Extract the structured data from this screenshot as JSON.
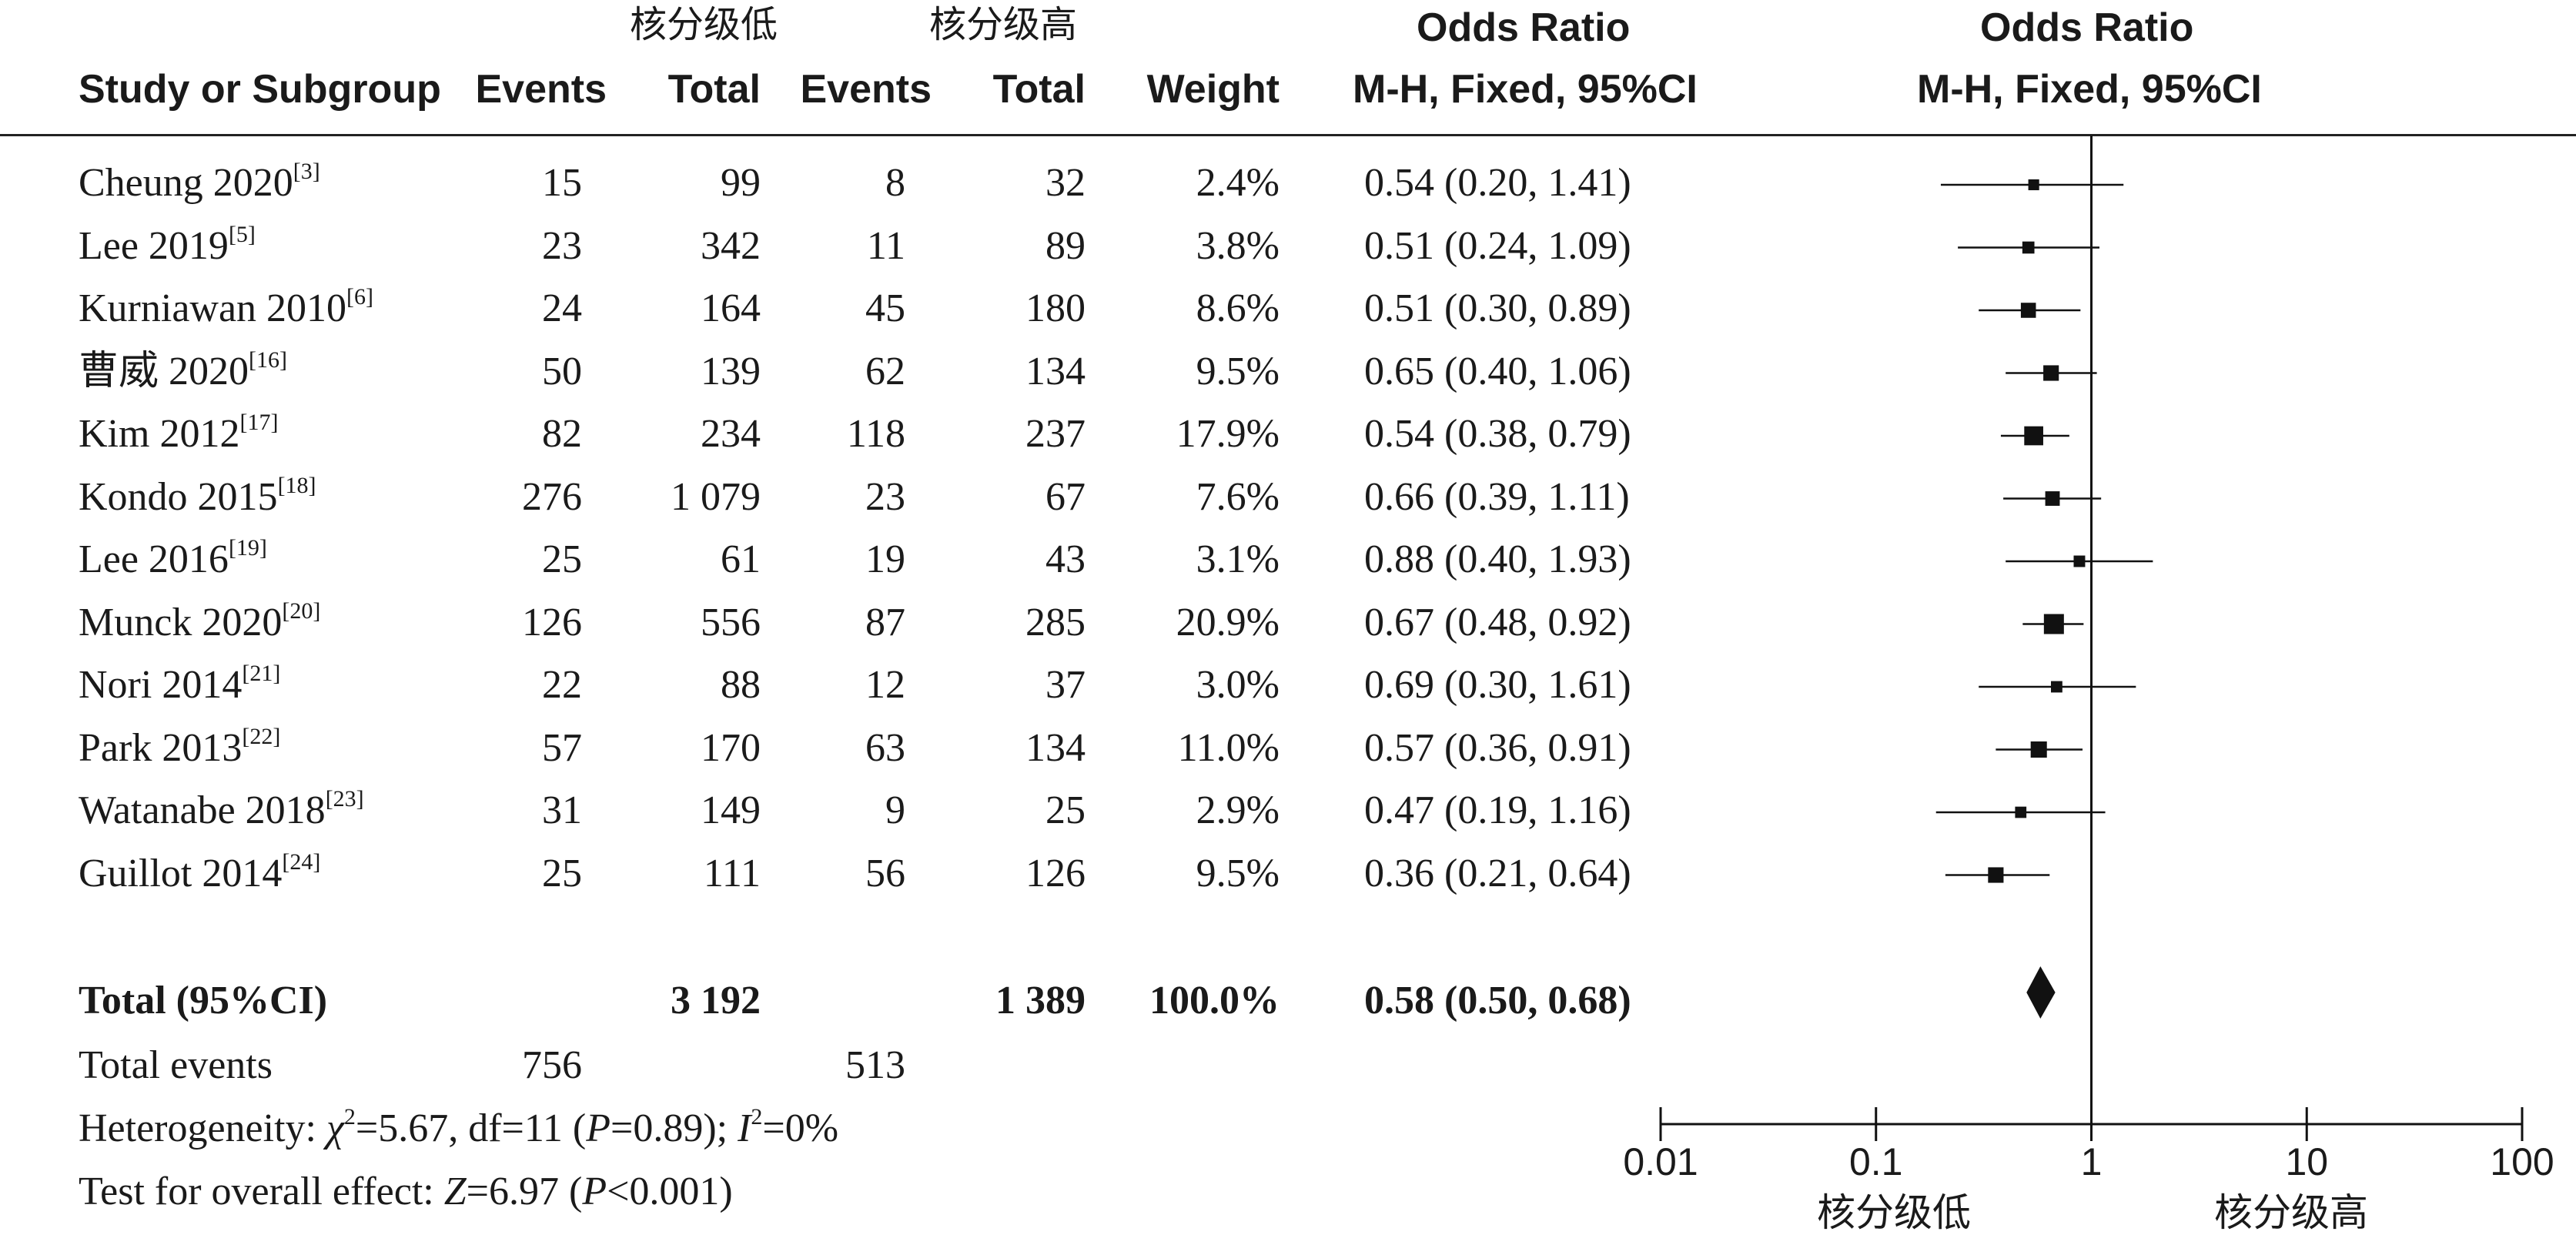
{
  "headers": {
    "study": "Study or Subgroup",
    "group_low": "核分级低",
    "group_high": "核分级高",
    "events_low": "Events",
    "total_low": "Total",
    "events_high": "Events",
    "total_high": "Total",
    "weight": "Weight",
    "or_title": "Odds Ratio",
    "or_method": "M-H, Fixed, 95%CI",
    "plot_title": "Odds Ratio",
    "plot_method": "M-H, Fixed, 95%CI"
  },
  "studies": [
    {
      "name": "Cheung 2020",
      "ref": "[3]",
      "e1": "15",
      "t1": "99",
      "e2": "8",
      "t2": "32",
      "weight": "2.4%",
      "ci": "0.54 (0.20, 1.41)"
    },
    {
      "name": "Lee 2019",
      "ref": "[5]",
      "e1": "23",
      "t1": "342",
      "e2": "11",
      "t2": "89",
      "weight": "3.8%",
      "ci": "0.51 (0.24, 1.09)"
    },
    {
      "name": "Kurniawan 2010",
      "ref": "[6]",
      "e1": "24",
      "t1": "164",
      "e2": "45",
      "t2": "180",
      "weight": "8.6%",
      "ci": "0.51 (0.30, 0.89)"
    },
    {
      "name": "曹威 2020",
      "ref": "[16]",
      "e1": "50",
      "t1": "139",
      "e2": "62",
      "t2": "134",
      "weight": "9.5%",
      "ci": "0.65 (0.40, 1.06)"
    },
    {
      "name": "Kim 2012",
      "ref": "[17]",
      "e1": "82",
      "t1": "234",
      "e2": "118",
      "t2": "237",
      "weight": "17.9%",
      "ci": "0.54 (0.38, 0.79)"
    },
    {
      "name": "Kondo 2015",
      "ref": "[18]",
      "e1": "276",
      "t1": "1 079",
      "e2": "23",
      "t2": "67",
      "weight": "7.6%",
      "ci": "0.66 (0.39, 1.11)"
    },
    {
      "name": "Lee 2016",
      "ref": "[19]",
      "e1": "25",
      "t1": "61",
      "e2": "19",
      "t2": "43",
      "weight": "3.1%",
      "ci": "0.88 (0.40, 1.93)"
    },
    {
      "name": "Munck 2020",
      "ref": "[20]",
      "e1": "126",
      "t1": "556",
      "e2": "87",
      "t2": "285",
      "weight": "20.9%",
      "ci": "0.67 (0.48, 0.92)"
    },
    {
      "name": "Nori 2014",
      "ref": "[21]",
      "e1": "22",
      "t1": "88",
      "e2": "12",
      "t2": "37",
      "weight": "3.0%",
      "ci": "0.69 (0.30, 1.61)"
    },
    {
      "name": "Park 2013",
      "ref": "[22]",
      "e1": "57",
      "t1": "170",
      "e2": "63",
      "t2": "134",
      "weight": "11.0%",
      "ci": "0.57 (0.36, 0.91)"
    },
    {
      "name": "Watanabe 2018",
      "ref": "[23]",
      "e1": "31",
      "t1": "149",
      "e2": "9",
      "t2": "25",
      "weight": "2.9%",
      "ci": "0.47 (0.19, 1.16)"
    },
    {
      "name": "Guillot 2014",
      "ref": "[24]",
      "e1": "25",
      "t1": "111",
      "e2": "56",
      "t2": "126",
      "weight": "9.5%",
      "ci": "0.36 (0.21, 0.64)"
    }
  ],
  "total": {
    "label": "Total (95%CI)",
    "t1": "3 192",
    "t2": "1 389",
    "weight": "100.0%",
    "ci": "0.58 (0.50, 0.68)"
  },
  "total_events": {
    "label": "Total events",
    "e1": "756",
    "e2": "513"
  },
  "footer": {
    "het_prefix": "Heterogeneity: ",
    "het_chi": "χ",
    "het_chi_sup": "2",
    "het_mid": "=5.67, df=11 (",
    "het_p": "P",
    "het_pval": "=0.89); ",
    "het_i": "I",
    "het_i_sup": "2",
    "het_ival": "=0%",
    "test_prefix": "Test for overall effect: ",
    "test_z": "Z",
    "test_zval": "=6.97 (",
    "test_p": "P",
    "test_pval": "<0.001)"
  },
  "axis": {
    "ticks": [
      "0.01",
      "0.1",
      "1",
      "10",
      "100"
    ],
    "favours_left": "核分级低",
    "favours_right": "核分级高"
  },
  "chart_data": {
    "type": "forest",
    "scale": "log",
    "xlim": [
      0.01,
      100
    ],
    "reference_line": 1,
    "series": [
      {
        "study": "Cheung 2020",
        "or": 0.54,
        "lower": 0.2,
        "upper": 1.41,
        "weight": 2.4
      },
      {
        "study": "Lee 2019",
        "or": 0.51,
        "lower": 0.24,
        "upper": 1.09,
        "weight": 3.8
      },
      {
        "study": "Kurniawan 2010",
        "or": 0.51,
        "lower": 0.3,
        "upper": 0.89,
        "weight": 8.6
      },
      {
        "study": "曹威 2020",
        "or": 0.65,
        "lower": 0.4,
        "upper": 1.06,
        "weight": 9.5
      },
      {
        "study": "Kim 2012",
        "or": 0.54,
        "lower": 0.38,
        "upper": 0.79,
        "weight": 17.9
      },
      {
        "study": "Kondo 2015",
        "or": 0.66,
        "lower": 0.39,
        "upper": 1.11,
        "weight": 7.6
      },
      {
        "study": "Lee 2016",
        "or": 0.88,
        "lower": 0.4,
        "upper": 1.93,
        "weight": 3.1
      },
      {
        "study": "Munck 2020",
        "or": 0.67,
        "lower": 0.48,
        "upper": 0.92,
        "weight": 20.9
      },
      {
        "study": "Nori 2014",
        "or": 0.69,
        "lower": 0.3,
        "upper": 1.61,
        "weight": 3.0
      },
      {
        "study": "Park 2013",
        "or": 0.57,
        "lower": 0.36,
        "upper": 0.91,
        "weight": 11.0
      },
      {
        "study": "Watanabe 2018",
        "or": 0.47,
        "lower": 0.19,
        "upper": 1.16,
        "weight": 2.9
      },
      {
        "study": "Guillot 2014",
        "or": 0.36,
        "lower": 0.21,
        "upper": 0.64,
        "weight": 9.5
      }
    ],
    "pooled": {
      "or": 0.58,
      "lower": 0.5,
      "upper": 0.68
    }
  }
}
